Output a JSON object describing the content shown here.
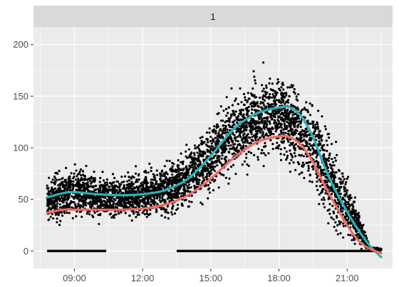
{
  "chart_data": {
    "type": "scatter",
    "facet_label": "1",
    "title": "",
    "xlabel": "",
    "ylabel": "",
    "x_ticks": [
      "09:00",
      "12:00",
      "15:00",
      "18:00",
      "21:00"
    ],
    "x_tick_hours": [
      9,
      12,
      15,
      18,
      21
    ],
    "xlim_hours": [
      7.2,
      23.0
    ],
    "y_ticks": [
      0,
      50,
      100,
      150,
      200
    ],
    "ylim": [
      -17,
      217
    ],
    "grid": true,
    "legend": "none",
    "colors": {
      "panel": "#ebebeb",
      "strip": "#d9d9d9",
      "grid_major": "#ffffff",
      "points": "#000000",
      "smooth_upper": "#26b3b8",
      "smooth_lower": "#f2685f"
    },
    "point_cloud_bands": [
      {
        "x": 7.8,
        "low": 20,
        "high": 78
      },
      {
        "x": 8.5,
        "low": 20,
        "high": 85
      },
      {
        "x": 9.0,
        "low": 22,
        "high": 100
      },
      {
        "x": 9.5,
        "low": 22,
        "high": 90
      },
      {
        "x": 10.0,
        "low": 22,
        "high": 82
      },
      {
        "x": 11.0,
        "low": 24,
        "high": 78
      },
      {
        "x": 12.0,
        "low": 24,
        "high": 85
      },
      {
        "x": 13.0,
        "low": 24,
        "high": 92
      },
      {
        "x": 14.0,
        "low": 30,
        "high": 110
      },
      {
        "x": 15.0,
        "low": 45,
        "high": 140
      },
      {
        "x": 16.0,
        "low": 60,
        "high": 168
      },
      {
        "x": 17.0,
        "low": 70,
        "high": 185
      },
      {
        "x": 18.0,
        "low": 75,
        "high": 188
      },
      {
        "x": 19.0,
        "low": 60,
        "high": 175
      },
      {
        "x": 19.5,
        "low": 45,
        "high": 160
      },
      {
        "x": 20.0,
        "low": 20,
        "high": 140
      },
      {
        "x": 20.5,
        "low": 2,
        "high": 110
      },
      {
        "x": 21.0,
        "low": 0,
        "high": 85
      },
      {
        "x": 21.5,
        "low": 0,
        "high": 45
      },
      {
        "x": 22.0,
        "low": 0,
        "high": 5
      },
      {
        "x": 22.5,
        "low": 0,
        "high": 3
      }
    ],
    "zero_segments": [
      [
        7.8,
        10.4
      ],
      [
        13.5,
        22.5
      ]
    ],
    "series": [
      {
        "key": "upper",
        "x": [
          7.8,
          8.5,
          9.0,
          10.0,
          11.0,
          12.0,
          13.0,
          14.0,
          15.0,
          16.0,
          17.0,
          18.0,
          18.5,
          19.0,
          19.5,
          20.0,
          20.5,
          21.0,
          21.5,
          22.0,
          22.5
        ],
        "y": [
          52,
          56,
          57,
          55,
          54,
          55,
          59,
          70,
          92,
          118,
          133,
          139,
          139,
          130,
          110,
          82,
          58,
          38,
          20,
          5,
          -6
        ]
      },
      {
        "key": "lower",
        "x": [
          7.8,
          8.5,
          9.0,
          10.0,
          11.0,
          12.0,
          13.0,
          14.0,
          15.0,
          16.0,
          17.0,
          18.0,
          18.5,
          19.0,
          19.5,
          20.0,
          20.5,
          21.0,
          21.5,
          22.0,
          22.5
        ],
        "y": [
          37,
          40,
          40,
          40,
          40,
          41,
          45,
          54,
          70,
          90,
          105,
          111,
          110,
          102,
          86,
          64,
          44,
          25,
          10,
          2,
          -2
        ]
      }
    ]
  }
}
